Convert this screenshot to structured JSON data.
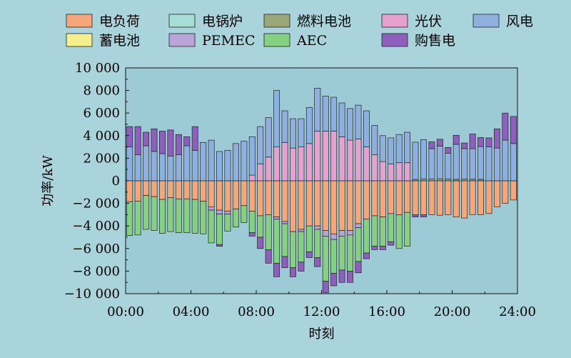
{
  "colors": {
    "background": "#a9d4dc",
    "plot_background": "#9ccbd6"
  },
  "chart_data": {
    "type": "bar",
    "stacked": true,
    "xlabel": "时刻",
    "ylabel": "功率/kW",
    "ylim": [
      -10000,
      10000
    ],
    "y_ticks": [
      10000,
      8000,
      6000,
      4000,
      2000,
      0,
      -2000,
      -4000,
      -6000,
      -8000,
      -10000
    ],
    "y_tick_labels": [
      "10 000",
      "8 000",
      "6 000",
      "4 000",
      "2 000",
      "0",
      "−2 000",
      "−4 000",
      "−6 000",
      "−8 000",
      "−10 000"
    ],
    "x_range": [
      0,
      24
    ],
    "x_tick_values": [
      0,
      4,
      8,
      12,
      16,
      20,
      24
    ],
    "x_tick_labels": [
      "00:00",
      "04:00",
      "08:00",
      "12:00",
      "16:00",
      "20:00",
      "24:00"
    ],
    "x": [
      0.25,
      0.75,
      1.25,
      1.75,
      2.25,
      2.75,
      3.25,
      3.75,
      4.25,
      4.75,
      5.25,
      5.75,
      6.25,
      6.75,
      7.25,
      7.75,
      8.25,
      8.75,
      9.25,
      9.75,
      10.25,
      10.75,
      11.25,
      11.75,
      12.25,
      12.75,
      13.25,
      13.75,
      14.25,
      14.75,
      15.25,
      15.75,
      16.25,
      16.75,
      17.25,
      17.75,
      18.25,
      18.75,
      19.25,
      19.75,
      20.25,
      20.75,
      21.25,
      21.75,
      22.25,
      22.75,
      23.25,
      23.75
    ],
    "legend_position": "top",
    "legend_columns": 5,
    "series": [
      {
        "name": "电负荷",
        "color": "#f5a77a",
        "sign": "negative",
        "values": [
          -1850,
          -1800,
          -1300,
          -1400,
          -1650,
          -1500,
          -1600,
          -1600,
          -1650,
          -1800,
          -2300,
          -2600,
          -2700,
          -2500,
          -2200,
          -2700,
          -3100,
          -3000,
          -3200,
          -3600,
          -4500,
          -4300,
          -4000,
          -4000,
          -4400,
          -4700,
          -4400,
          -4400,
          -3800,
          -3400,
          -3100,
          -3200,
          -2900,
          -3000,
          -2800,
          -3000,
          -3000,
          -3000,
          -3050,
          -3000,
          -3200,
          -3300,
          -3000,
          -3000,
          -2900,
          -2300,
          -2000,
          -1700
        ]
      },
      {
        "name": "电锅炉",
        "color": "#a6ddd4",
        "sign": "negative",
        "values": [
          0,
          0,
          0,
          0,
          0,
          0,
          0,
          0,
          0,
          0,
          0,
          0,
          0,
          0,
          0,
          0,
          0,
          0,
          0,
          0,
          0,
          0,
          0,
          0,
          0,
          0,
          0,
          0,
          0,
          0,
          0,
          0,
          0,
          0,
          0,
          0,
          0,
          0,
          0,
          0,
          0,
          0,
          0,
          0,
          0,
          0,
          0,
          0
        ]
      },
      {
        "name": "燃料电池",
        "color": "#9aa777",
        "sign": "positive",
        "values": [
          0,
          0,
          0,
          0,
          0,
          0,
          0,
          0,
          0,
          0,
          0,
          0,
          0,
          0,
          0,
          0,
          0,
          0,
          0,
          0,
          0,
          0,
          0,
          0,
          0,
          0,
          0,
          0,
          0,
          0,
          0,
          0,
          0,
          0,
          0,
          120,
          150,
          150,
          180,
          150,
          130,
          150,
          140,
          130,
          0,
          0,
          0,
          0
        ]
      },
      {
        "name": "光伏",
        "color": "#e5a1cf",
        "sign": "positive",
        "values": [
          0,
          0,
          0,
          0,
          0,
          0,
          0,
          0,
          0,
          0,
          0,
          0,
          0,
          0,
          0,
          500,
          1500,
          2100,
          3000,
          3400,
          2900,
          3000,
          3300,
          4400,
          4400,
          4400,
          3900,
          3600,
          3700,
          3000,
          2300,
          1700,
          1500,
          1600,
          1600,
          0,
          0,
          0,
          0,
          0,
          0,
          0,
          0,
          0,
          0,
          0,
          0,
          0
        ]
      },
      {
        "name": "风电",
        "color": "#8fb0df",
        "sign": "positive",
        "values": [
          3000,
          2300,
          3100,
          2600,
          2400,
          2200,
          2300,
          3100,
          2700,
          3400,
          3600,
          2600,
          2700,
          3300,
          3500,
          3400,
          3300,
          3500,
          5000,
          2800,
          2600,
          2500,
          3200,
          3800,
          3100,
          3000,
          3000,
          2800,
          3000,
          3200,
          2600,
          2300,
          2300,
          2500,
          2700,
          3300,
          3500,
          2700,
          2900,
          2300,
          3100,
          2700,
          2700,
          2900,
          3000,
          2900,
          3600,
          3300
        ]
      },
      {
        "name": "蓄电池",
        "color": "#f4ef8c",
        "sign": "mixed",
        "values": [
          0,
          0,
          0,
          0,
          0,
          0,
          0,
          0,
          0,
          0,
          0,
          0,
          0,
          0,
          0,
          0,
          0,
          0,
          0,
          0,
          0,
          0,
          0,
          0,
          0,
          0,
          0,
          0,
          0,
          0,
          0,
          0,
          0,
          0,
          0,
          0,
          0,
          0,
          0,
          0,
          0,
          0,
          0,
          0,
          0,
          0,
          0,
          0
        ]
      },
      {
        "name": "PEMEC",
        "color": "#b8a4d8",
        "sign": "negative",
        "values": [
          0,
          0,
          0,
          0,
          0,
          0,
          0,
          0,
          0,
          0,
          -300,
          -350,
          -250,
          0,
          0,
          0,
          0,
          0,
          -200,
          -200,
          0,
          -200,
          0,
          -300,
          -500,
          -500,
          -500,
          -400,
          -350,
          0,
          0,
          0,
          0,
          0,
          0,
          0,
          0,
          0,
          0,
          0,
          0,
          0,
          0,
          0,
          0,
          0,
          0,
          0
        ]
      },
      {
        "name": "AEC",
        "color": "#86d083",
        "sign": "negative",
        "values": [
          -3000,
          -3000,
          -3000,
          -3000,
          -3000,
          -3000,
          -3000,
          -3000,
          -3000,
          -2900,
          -2900,
          -2700,
          -1500,
          -1600,
          -1500,
          -1900,
          -1900,
          -3100,
          -3900,
          -2900,
          -3200,
          -2700,
          -2300,
          -2500,
          -4000,
          -3000,
          -3000,
          -3200,
          -3000,
          -3000,
          -2700,
          -2600,
          -2500,
          -3000,
          -3000,
          0,
          0,
          0,
          0,
          0,
          0,
          0,
          0,
          0,
          0,
          0,
          0,
          0
        ]
      },
      {
        "name": "购售电",
        "color": "#8e5fbd",
        "sign": "mixed",
        "values": [
          1800,
          2500,
          1200,
          2000,
          2000,
          2300,
          1800,
          800,
          2100,
          0,
          0,
          -150,
          0,
          0,
          0,
          -300,
          -1000,
          -1200,
          -1200,
          -1000,
          -800,
          -800,
          -500,
          -800,
          -1000,
          -1100,
          -1100,
          -1000,
          -1000,
          -500,
          -300,
          -300,
          -300,
          0,
          0,
          -200,
          -200,
          600,
          600,
          500,
          800,
          500,
          1300,
          800,
          800,
          1700,
          2400,
          2400
        ]
      }
    ]
  },
  "legend": [
    {
      "label": "电负荷",
      "color": "#f5a77a"
    },
    {
      "label": "电锅炉",
      "color": "#a6ddd4"
    },
    {
      "label": "燃料电池",
      "color": "#9aa777"
    },
    {
      "label": "光伏",
      "color": "#e5a1cf"
    },
    {
      "label": "风电",
      "color": "#8fb0df"
    },
    {
      "label": "蓄电池",
      "color": "#f4ef8c"
    },
    {
      "label": "PEMEC",
      "color": "#b8a4d8"
    },
    {
      "label": "AEC",
      "color": "#86d083"
    },
    {
      "label": "购售电",
      "color": "#8e5fbd"
    }
  ]
}
